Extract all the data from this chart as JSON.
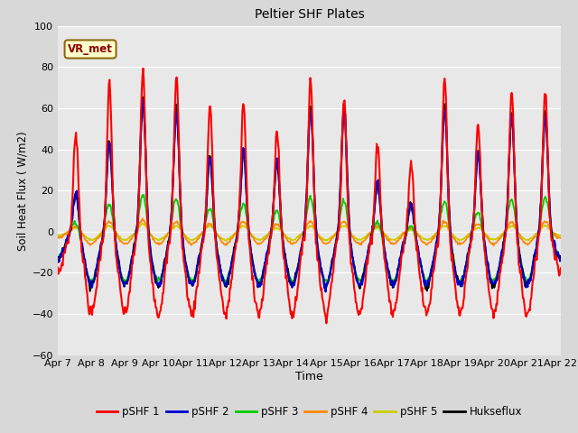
{
  "title": "Peltier SHF Plates",
  "xlabel": "Time",
  "ylabel": "Soil Heat Flux ( W/m2)",
  "ylim": [
    -60,
    100
  ],
  "xlim": [
    0,
    15
  ],
  "fig_bg_color": "#d8d8d8",
  "plot_bg_color": "#e8e8e8",
  "series_colors": {
    "pSHF 1": "#ff0000",
    "pSHF 2": "#0000cc",
    "pSHF 3": "#00cc00",
    "pSHF 4": "#ff8800",
    "pSHF 5": "#cccc00",
    "Hukseflux": "#000000"
  },
  "x_tick_labels": [
    "Apr 7",
    "Apr 8",
    "Apr 9",
    "Apr 10",
    "Apr 11",
    "Apr 12",
    "Apr 13",
    "Apr 14",
    "Apr 15",
    "Apr 16",
    "Apr 17",
    "Apr 18",
    "Apr 19",
    "Apr 20",
    "Apr 21",
    "Apr 22"
  ],
  "x_tick_positions": [
    0,
    1,
    2,
    3,
    4,
    5,
    6,
    7,
    8,
    9,
    10,
    11,
    12,
    13,
    14,
    15
  ],
  "yticks": [
    -60,
    -40,
    -20,
    0,
    20,
    40,
    60,
    80,
    100
  ],
  "annotation_text": "VR_met",
  "legend_labels": [
    "pSHF 1",
    "pSHF 2",
    "pSHF 3",
    "pSHF 4",
    "pSHF 5",
    "Hukseflux"
  ]
}
